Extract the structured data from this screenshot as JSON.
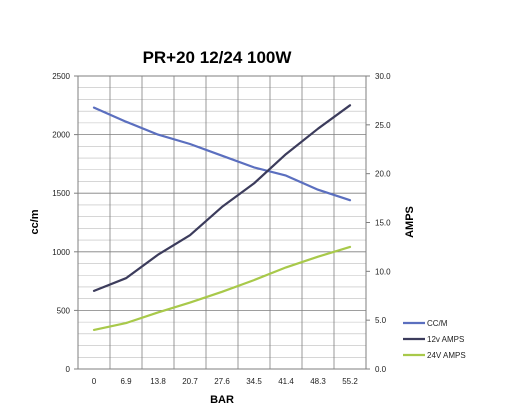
{
  "chart_data": {
    "type": "line",
    "title": "PR+20 12/24 100W",
    "xlabel": "BAR",
    "ylabel": "cc/m",
    "y2label": "AMPS",
    "x": [
      0,
      6.9,
      13.8,
      20.7,
      27.6,
      34.5,
      41.4,
      48.3,
      55.2
    ],
    "x_tick_labels": [
      "0",
      "6.9",
      "13.8",
      "20.7",
      "27.6",
      "34.5",
      "41.4",
      "48.3",
      "55.2"
    ],
    "ylim": [
      0,
      2500
    ],
    "y_ticks": [
      0,
      500,
      1000,
      1500,
      2000,
      2500
    ],
    "y_tick_labels": [
      "0",
      "500",
      "1000",
      "1500",
      "2000",
      "2500"
    ],
    "y2lim": [
      0,
      30
    ],
    "y2_ticks": [
      0,
      5,
      10,
      15,
      20,
      25,
      30
    ],
    "y2_tick_labels": [
      "0.0",
      "5.0",
      "10.0",
      "15.0",
      "20.0",
      "25.0",
      "30.0"
    ],
    "grid": true,
    "legend_position": "bottom-right",
    "series": [
      {
        "name": "CC/M",
        "axis": "left",
        "color": "#5b6fbf",
        "values": [
          2230,
          2110,
          2000,
          1920,
          1820,
          1720,
          1650,
          1530,
          1440
        ]
      },
      {
        "name": "12v AMPS",
        "axis": "right",
        "color": "#3c3c5c",
        "values": [
          8.0,
          9.3,
          11.7,
          13.7,
          16.6,
          19.0,
          22.0,
          24.6,
          27.0
        ]
      },
      {
        "name": "24V AMPS",
        "axis": "right",
        "color": "#a8c94a",
        "values": [
          4.0,
          4.7,
          5.8,
          6.8,
          7.9,
          9.1,
          10.4,
          11.5,
          12.5
        ]
      }
    ]
  }
}
